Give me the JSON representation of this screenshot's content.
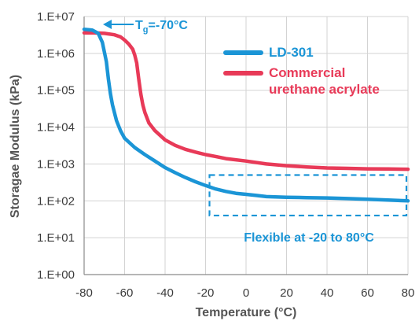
{
  "chart_data": {
    "type": "line",
    "xlabel": "Temperature (°C)",
    "ylabel": "Storagae Modulus (kPa)",
    "xlim": [
      -80,
      80
    ],
    "ylim": [
      1,
      10000000
    ],
    "y_scale": "log",
    "grid": true,
    "x_ticks": [
      "-80",
      "-60",
      "-40",
      "-20",
      "0",
      "20",
      "40",
      "60",
      "80"
    ],
    "y_ticks": [
      "1.E+00",
      "1.E+01",
      "1.E+02",
      "1.E+03",
      "1.E+04",
      "1.E+05",
      "1.E+06",
      "1.E+07"
    ],
    "legend_position": "top-right",
    "series": [
      {
        "name": "LD-301",
        "color": "#1b95d6",
        "x": [
          -80,
          -76,
          -73,
          -71,
          -69,
          -68,
          -67,
          -66,
          -64,
          -62,
          -60,
          -55,
          -50,
          -45,
          -40,
          -35,
          -30,
          -25,
          -20,
          -15,
          -10,
          -5,
          0,
          5,
          10,
          20,
          30,
          40,
          50,
          60,
          70,
          80
        ],
        "y": [
          4500000,
          4300000,
          3500000,
          2000000,
          600000,
          200000,
          80000,
          40000,
          15000,
          8000,
          5000,
          2800,
          1800,
          1200,
          800,
          580,
          430,
          330,
          260,
          210,
          180,
          160,
          150,
          140,
          130,
          125,
          122,
          120,
          115,
          110,
          105,
          100
        ]
      },
      {
        "name": "Commercial urethane acrylate",
        "color": "#e83a58",
        "x": [
          -80,
          -75,
          -70,
          -65,
          -62,
          -60,
          -58,
          -56,
          -55,
          -54,
          -53,
          -52,
          -51,
          -50,
          -48,
          -45,
          -40,
          -35,
          -30,
          -25,
          -20,
          -15,
          -10,
          0,
          10,
          20,
          30,
          40,
          50,
          60,
          70,
          80
        ],
        "y": [
          3600000,
          3600000,
          3500000,
          3200000,
          2800000,
          2300000,
          1800000,
          1300000,
          900000,
          550000,
          200000,
          80000,
          40000,
          25000,
          13000,
          8000,
          4500,
          3200,
          2500,
          2100,
          1800,
          1600,
          1400,
          1200,
          1000,
          900,
          830,
          780,
          760,
          740,
          730,
          720
        ]
      }
    ],
    "annotations": {
      "tg_label": "T",
      "tg_sub": "g",
      "tg_value": "=-70°C",
      "tg_x": -70,
      "flexible_label": "Flexible at -20 to 80°C",
      "flexible_range_x": [
        -20,
        80
      ],
      "flexible_range_y": [
        40,
        500
      ]
    }
  },
  "colors": {
    "grid": "#d3d3d3",
    "axis": "#8a8a8a",
    "annotation": "#1b95d6"
  }
}
